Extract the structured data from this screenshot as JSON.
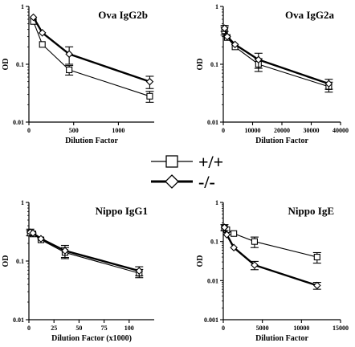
{
  "legend": {
    "wt_label": "+/+",
    "ko_label": "-/-"
  },
  "chart_data": [
    {
      "type": "line",
      "title": "Ova IgG2b",
      "xlabel": "Dilution Factor",
      "ylabel": "OD",
      "yscale": "log",
      "xlim": [
        0,
        1400
      ],
      "ylim": [
        0.01,
        1
      ],
      "xticks": [
        0,
        500,
        1000
      ],
      "xtick_labels": [
        "0",
        "500",
        "1000"
      ],
      "yticks": [
        0.01,
        0.1,
        1
      ],
      "ytick_labels": [
        "0.01",
        "0.1",
        "1"
      ],
      "series": [
        {
          "name": "+/+",
          "marker": "square",
          "x": [
            50,
            150,
            450,
            1350
          ],
          "y": [
            0.55,
            0.22,
            0.08,
            0.028
          ],
          "err": [
            0,
            0,
            0.015,
            0.006
          ]
        },
        {
          "name": "-/-",
          "marker": "diamond",
          "x": [
            50,
            150,
            450,
            1350
          ],
          "y": [
            0.65,
            0.35,
            0.15,
            0.05
          ],
          "err": [
            0,
            0,
            0.05,
            0.012
          ]
        }
      ]
    },
    {
      "type": "line",
      "title": "Ova IgG2a",
      "xlabel": "Dilution Factor",
      "ylabel": "OD",
      "yscale": "log",
      "xlim": [
        0,
        40000
      ],
      "ylim": [
        0.01,
        1
      ],
      "xticks": [
        0,
        10000,
        20000,
        30000,
        40000
      ],
      "xtick_labels": [
        "0",
        "10000",
        "20000",
        "30000",
        "40000"
      ],
      "yticks": [
        0.01,
        0.1,
        1
      ],
      "ytick_labels": [
        "0.01",
        "0.1",
        "1"
      ],
      "series": [
        {
          "name": "+/+",
          "marker": "square",
          "x": [
            450,
            1350,
            4000,
            12000,
            36000
          ],
          "y": [
            0.38,
            0.29,
            0.2,
            0.1,
            0.041
          ],
          "err": [
            0.06,
            0,
            0,
            0.025,
            0.008
          ]
        },
        {
          "name": "-/-",
          "marker": "diamond",
          "x": [
            450,
            1350,
            4000,
            12000,
            36000
          ],
          "y": [
            0.42,
            0.3,
            0.22,
            0.12,
            0.046
          ],
          "err": [
            0.05,
            0,
            0,
            0.035,
            0.009
          ]
        }
      ]
    },
    {
      "type": "line",
      "title": "Nippo IgG1",
      "xlabel": "Dilution Factor (x1000)",
      "ylabel": "OD",
      "yscale": "log",
      "xlim": [
        0,
        125
      ],
      "ylim": [
        0.01,
        1
      ],
      "xticks": [
        0,
        25,
        50,
        75,
        100
      ],
      "xtick_labels": [
        "0",
        "25",
        "50",
        "75",
        "100"
      ],
      "yticks": [
        0.01,
        0.1,
        1
      ],
      "ytick_labels": [
        "0.01",
        "0.1",
        "1"
      ],
      "series": [
        {
          "name": "+/+",
          "marker": "square",
          "x": [
            1.35,
            4,
            12,
            36,
            110
          ],
          "y": [
            0.3,
            0.29,
            0.23,
            0.14,
            0.062
          ],
          "err": [
            0.03,
            0,
            0,
            0.03,
            0.01
          ]
        },
        {
          "name": "-/-",
          "marker": "diamond",
          "x": [
            1.35,
            4,
            12,
            36,
            110
          ],
          "y": [
            0.31,
            0.3,
            0.24,
            0.15,
            0.068
          ],
          "err": [
            0.04,
            0,
            0,
            0.035,
            0.012
          ]
        }
      ]
    },
    {
      "type": "line",
      "title": "Nippo IgE",
      "xlabel": "Dilution Factor",
      "ylabel": "OD",
      "yscale": "log",
      "xlim": [
        0,
        15000
      ],
      "ylim": [
        0.001,
        1
      ],
      "xticks": [
        0,
        5000,
        10000,
        15000
      ],
      "xtick_labels": [
        "0",
        "5000",
        "10000",
        "15000"
      ],
      "yticks": [
        0.001,
        0.01,
        0.1,
        1
      ],
      "ytick_labels": [
        "0.001",
        "0.01",
        "0.1",
        "1"
      ],
      "series": [
        {
          "name": "+/+",
          "marker": "square",
          "x": [
            150,
            450,
            1350,
            4000,
            12000
          ],
          "y": [
            0.22,
            0.2,
            0.16,
            0.1,
            0.04
          ],
          "err": [
            0,
            0,
            0,
            0.03,
            0.012
          ]
        },
        {
          "name": "-/-",
          "marker": "diamond",
          "x": [
            150,
            450,
            1350,
            4000,
            12000
          ],
          "y": [
            0.23,
            0.15,
            0.07,
            0.025,
            0.0075
          ],
          "err": [
            0.04,
            0,
            0,
            0.006,
            0.0015
          ]
        }
      ]
    }
  ]
}
